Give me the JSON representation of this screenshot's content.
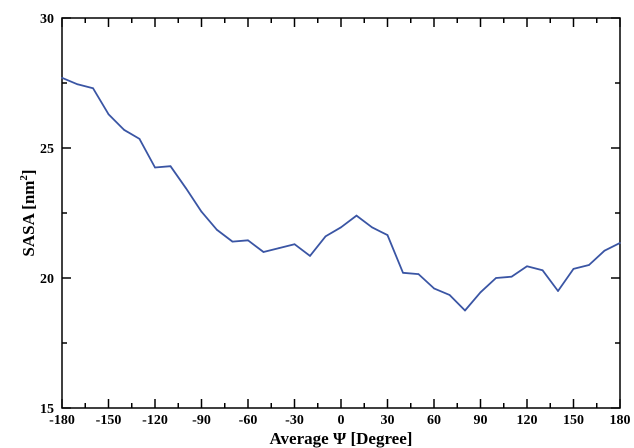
{
  "chart_data": {
    "type": "line",
    "title": "",
    "xlabel": "Average Ψ [Degree]",
    "ylabel": "SASA [nm",
    "ylabel_superscript": "2",
    "ylabel_suffix": "]",
    "xlim": [
      -180,
      180
    ],
    "ylim": [
      15,
      30
    ],
    "xticks": [
      -180,
      -150,
      -120,
      -90,
      -60,
      -30,
      0,
      30,
      60,
      90,
      120,
      150,
      180
    ],
    "yticks": [
      15,
      20,
      25,
      30
    ],
    "grid": false,
    "legend": "none",
    "series": [
      {
        "color": "#3a55a4",
        "x": [
          -180,
          -170,
          -160,
          -150,
          -140,
          -130,
          -120,
          -110,
          -100,
          -90,
          -80,
          -70,
          -60,
          -50,
          -40,
          -30,
          -20,
          -10,
          0,
          10,
          20,
          30,
          40,
          50,
          60,
          70,
          80,
          90,
          100,
          110,
          120,
          130,
          140,
          150,
          160,
          170,
          180
        ],
        "y": [
          27.7,
          27.45,
          27.3,
          26.3,
          25.7,
          25.35,
          24.25,
          24.3,
          23.45,
          22.55,
          21.85,
          21.4,
          21.45,
          21.0,
          21.15,
          21.3,
          20.85,
          21.6,
          21.95,
          22.4,
          21.95,
          21.65,
          20.2,
          20.15,
          19.6,
          19.35,
          18.75,
          19.45,
          20.0,
          20.05,
          20.45,
          20.3,
          19.5,
          20.35,
          20.5,
          21.05,
          21.35
        ]
      }
    ]
  }
}
